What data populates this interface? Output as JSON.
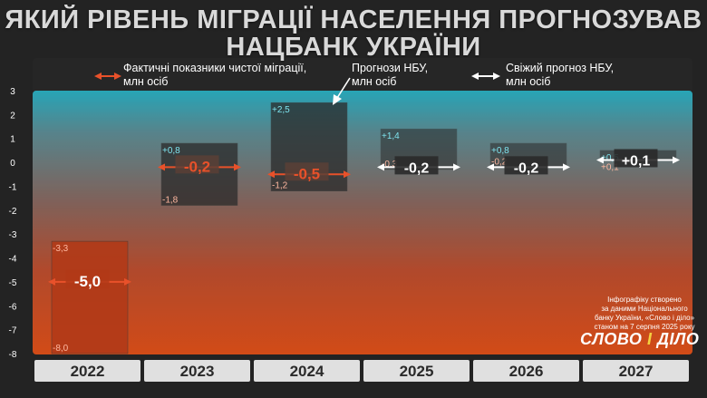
{
  "title_line1": "ЯКИЙ РІВЕНЬ МІГРАЦІЇ НАСЕЛЕННЯ ПРОГНОЗУВАВ",
  "title_line2": "НАЦБАНК УКРАЇНИ",
  "source": {
    "line1": "Інфографіку створено",
    "line2": "за даними Національного",
    "line3": "банку України, «Слово і діло»",
    "line4": "станом на 7 серпня 2025 року"
  },
  "brand": {
    "part1": "СЛОВО",
    "part2": "І",
    "part3": "ДІЛО"
  },
  "colors": {
    "actual": "#e8512a",
    "forecast_box": "#1e1e1e",
    "fresh": "#ffffff",
    "year_label_bg": "#e0e0e0"
  },
  "chart_data": {
    "type": "range_bar",
    "ylim": [
      -8,
      3
    ],
    "yticks": [
      "3",
      "2",
      "1",
      "0",
      "-1",
      "-2",
      "-3",
      "-4",
      "-5",
      "-6",
      "-7",
      "-8"
    ],
    "categories": [
      "2022",
      "2023",
      "2024",
      "2025",
      "2026",
      "2027"
    ],
    "legend": [
      {
        "line1": "Фактичні показники чистої міграції,",
        "line2": "млн осіб",
        "kind": "actual"
      },
      {
        "line1": "Прогнози НБУ,",
        "line2": "млн осіб",
        "kind": "forecast"
      },
      {
        "line1": "Свіжий прогноз НБУ,",
        "line2": "млн осіб",
        "kind": "fresh"
      }
    ],
    "bars": [
      {
        "year": "2022",
        "high": -3.3,
        "low": -8.0,
        "high_label": "-3,3",
        "low_label": "-8,0",
        "value": -5.0,
        "value_label": "-5,0",
        "kind": "actual"
      },
      {
        "year": "2023",
        "high": 0.8,
        "low": -1.8,
        "high_label": "+0,8",
        "low_label": "-1,8",
        "value": -0.2,
        "value_label": "-0,2",
        "kind": "actual"
      },
      {
        "year": "2024",
        "high": 2.5,
        "low": -1.2,
        "high_label": "+2,5",
        "low_label": "-1,2",
        "value": -0.5,
        "value_label": "-0,5",
        "kind": "actual"
      },
      {
        "year": "2025",
        "high": 1.4,
        "low": -0.3,
        "high_label": "+1,4",
        "low_label": "-0,3",
        "value": -0.2,
        "value_label": "-0,2",
        "kind": "fresh"
      },
      {
        "year": "2026",
        "high": 0.8,
        "low": -0.2,
        "high_label": "+0,8",
        "low_label": "-0,2",
        "value": -0.2,
        "value_label": "-0,2",
        "kind": "fresh"
      },
      {
        "year": "2027",
        "high": 0.5,
        "low": 0.1,
        "high_label": "+0,5",
        "low_label": "+0,1",
        "value": 0.1,
        "value_label": "+0,1",
        "kind": "fresh"
      }
    ]
  }
}
